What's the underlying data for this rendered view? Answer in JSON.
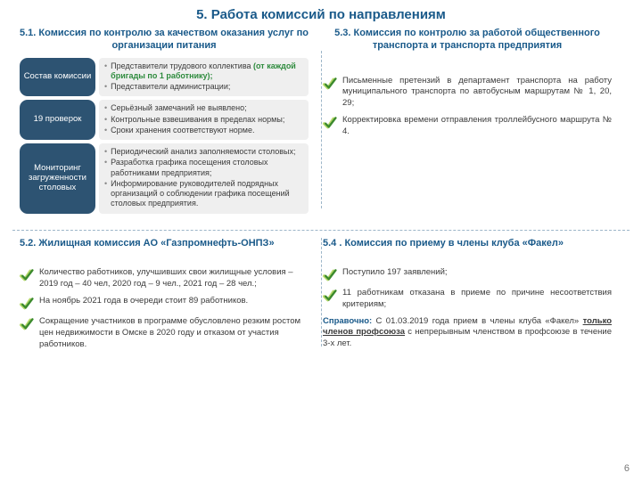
{
  "page": {
    "title": "5. Работа комиссий по направлениям",
    "page_number": "6"
  },
  "colors": {
    "heading": "#1a5a8a",
    "pill_bg": "#2d5372",
    "grey_bg": "#efefef",
    "accent_green": "#2e8b3d",
    "check_light": "#b6d96a",
    "check_dark": "#3c8a2e",
    "sep": "#9db6c9"
  },
  "s51": {
    "title": "5.1. Комиссия по контролю за качеством оказания услуг по организации питания",
    "rows": [
      {
        "pill": "Состав комиссии",
        "bullets": [
          {
            "pre": "Представители трудового коллектива ",
            "accent": "(от каждой бригады по 1 работнику);",
            "post": ""
          },
          {
            "pre": "Представители администрации;",
            "accent": "",
            "post": ""
          }
        ]
      },
      {
        "pill": "19 проверок",
        "bullets": [
          {
            "pre": "Серьёзный замечаний не выявлено;",
            "accent": "",
            "post": ""
          },
          {
            "pre": "Контрольные взвешивания в пределах нормы;",
            "accent": "",
            "post": ""
          },
          {
            "pre": "Сроки хранения соответствуют норме.",
            "accent": "",
            "post": ""
          }
        ]
      },
      {
        "pill": "Мониторинг загруженности столовых",
        "bullets": [
          {
            "pre": "Периодический анализ заполняемости столовых;",
            "accent": "",
            "post": ""
          },
          {
            "pre": "Разработка графика посещения столовых работниками предприятия;",
            "accent": "",
            "post": ""
          },
          {
            "pre": "Информирование руководителей подрядных организаций о соблюдении графика посещений столовых предприятия.",
            "accent": "",
            "post": ""
          }
        ]
      }
    ]
  },
  "s52": {
    "title": "5.2. Жилищная комиссия АО «Газпромнефть-ОНПЗ»",
    "items": [
      "Количество работников, улучшивших свои жилищные условия – 2019 год – 40 чел, 2020 год – 9 чел., 2021 год – 28 чел.;",
      "На ноябрь 2021 года в очереди стоит 89 работников.",
      "Сокращение участников в программе обусловлено резким ростом цен недвижимости в Омске в 2020 году и отказом от участия работников."
    ]
  },
  "s53": {
    "title": "5.3. Комиссия по контролю за работой общественного транспорта и транспорта предприятия",
    "items": [
      "Письменные претензий в департамент транспорта на работу муниципального транспорта по автобусным маршрутам № 1, 20, 29;",
      "Корректировка времени отправления троллейбусного маршрута № 4."
    ]
  },
  "s54": {
    "title": "5.4 . Комиссия по приему в члены клуба «Факел»",
    "items": [
      "Поступило 197 заявлений;",
      "11 работникам отказана в приеме по причине несоответствия критериям;"
    ],
    "note_label": "Справочно:",
    "note_pre": " С 01.03.2019 года прием в члены клуба «Факел» ",
    "note_underline": "только членов профсоюза",
    "note_post": " с непрерывным членством в профсоюзе в течение 3-х лет."
  }
}
